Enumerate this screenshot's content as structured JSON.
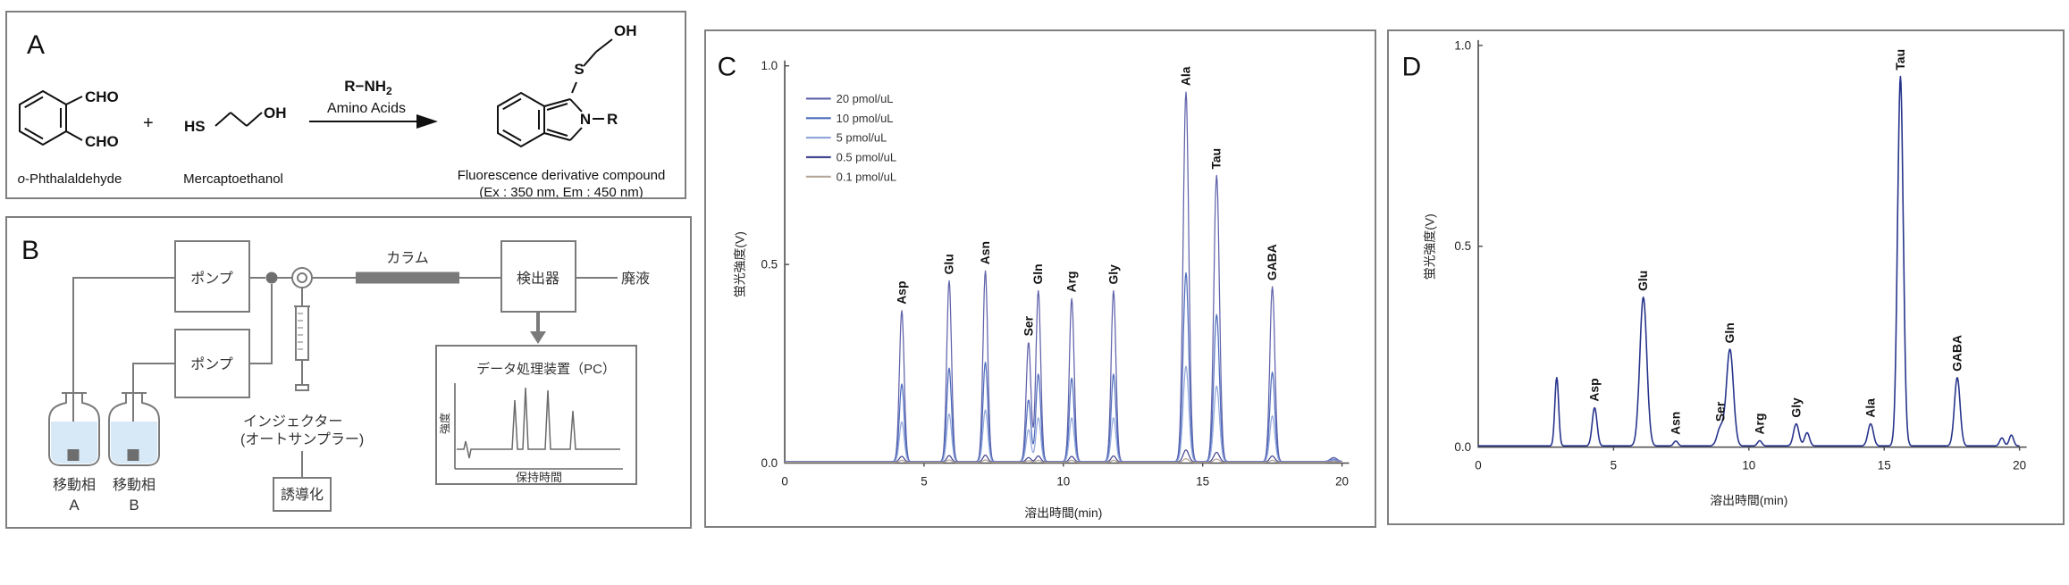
{
  "colors": {
    "panel_border": "#7f7f7f",
    "diagram_line": "#7a7a7a",
    "diagram_text": "#333333",
    "chem_ink": "#111111",
    "bottle_liquid": "#d7e9f7",
    "axis": "#4a4a4a"
  },
  "panelA": {
    "label": "A",
    "cho_top": "CHO",
    "cho_bottom": "CHO",
    "plus": "+",
    "hs": "HS",
    "oh": "OH",
    "reactant1_prefix": "o",
    "reactant1_rest": "-Phthalaldehyde",
    "reactant2": "Mercaptoethanol",
    "arrow_reagent": "R−NH",
    "arrow_reagent_sub": "2",
    "arrow_caption": "Amino Acids",
    "product_oh": "OH",
    "product_s": "S",
    "product_n": "N",
    "product_r": "R",
    "product_name": "Fluorescence derivative compound",
    "product_condition": "(Ex : 350 nm, Em : 450 nm)"
  },
  "panelB": {
    "label": "B",
    "pump_top": "ポンプ",
    "pump_bottom": "ポンプ",
    "column": "カラム",
    "detector": "検出器",
    "waste": "廃液",
    "pc_title": "データ処理装置（PC）",
    "pc_ylabel": "強度",
    "pc_xlabel": "保持時間",
    "injector_line1": "インジェクター",
    "injector_line2": "(オートサンプラー)",
    "derivatization": "誘導化",
    "mobile_a_label": "移動相",
    "mobile_a_sub": "A",
    "mobile_b_label": "移動相",
    "mobile_b_sub": "B"
  },
  "chart_data": [
    {
      "id": "C",
      "panel_label": "C",
      "type": "line",
      "title": "",
      "xlabel": "溶出時間(min)",
      "ylabel": "蛍光強度(V)",
      "xlim": [
        0,
        20
      ],
      "ylim": [
        0,
        1.0
      ],
      "xticks": [
        {
          "value": 0,
          "label": "0"
        },
        {
          "value": 5,
          "label": "5"
        },
        {
          "value": 10,
          "label": "10"
        },
        {
          "value": 15,
          "label": "15"
        },
        {
          "value": 20,
          "label": "20"
        }
      ],
      "yticks": [
        {
          "value": 0,
          "label": "0.0"
        },
        {
          "value": 0.5,
          "label": "0.5"
        },
        {
          "value": 1.0,
          "label": "1.0"
        }
      ],
      "legend_position": "upper-left",
      "grid": false,
      "peaks": [
        {
          "name": "Asp",
          "time": 4.2,
          "sigma": 0.085
        },
        {
          "name": "Glu",
          "time": 5.9,
          "sigma": 0.085
        },
        {
          "name": "Asn",
          "time": 7.2,
          "sigma": 0.085
        },
        {
          "name": "Ser",
          "time": 8.75,
          "sigma": 0.085
        },
        {
          "name": "Gln",
          "time": 9.1,
          "sigma": 0.085
        },
        {
          "name": "Arg",
          "time": 10.3,
          "sigma": 0.085
        },
        {
          "name": "Gly",
          "time": 11.8,
          "sigma": 0.085
        },
        {
          "name": "Ala",
          "time": 14.4,
          "sigma": 0.1
        },
        {
          "name": "Tau",
          "time": 15.5,
          "sigma": 0.1
        },
        {
          "name": "GABA",
          "time": 17.5,
          "sigma": 0.09
        },
        {
          "name": "",
          "time": 19.7,
          "sigma": 0.12
        }
      ],
      "series": [
        {
          "name": "20 pmol/uL",
          "color": "#5f61aa",
          "baseline": 0.004,
          "heights": [
            0.38,
            0.455,
            0.48,
            0.3,
            0.43,
            0.41,
            0.43,
            0.93,
            0.72,
            0.44,
            0.01
          ]
        },
        {
          "name": "10 pmol/uL",
          "color": "#4e6cbd",
          "baseline": 0.004,
          "heights": [
            0.195,
            0.235,
            0.25,
            0.155,
            0.22,
            0.21,
            0.22,
            0.475,
            0.37,
            0.225,
            0.006
          ]
        },
        {
          "name": "5 pmol/uL",
          "color": "#93a7db",
          "baseline": 0.004,
          "heights": [
            0.1,
            0.12,
            0.13,
            0.08,
            0.11,
            0.11,
            0.11,
            0.24,
            0.19,
            0.115,
            0.004
          ]
        },
        {
          "name": "0.5 pmol/uL",
          "color": "#44468e",
          "baseline": 0.003,
          "heights": [
            0.014,
            0.016,
            0.017,
            0.011,
            0.015,
            0.014,
            0.015,
            0.03,
            0.024,
            0.015,
            0.002
          ]
        },
        {
          "name": "0.1 pmol/uL",
          "color": "#b6a697",
          "baseline": 0.002,
          "heights": [
            0.005,
            0.006,
            0.006,
            0.004,
            0.005,
            0.005,
            0.005,
            0.009,
            0.008,
            0.005,
            0.002
          ]
        }
      ]
    },
    {
      "id": "D",
      "panel_label": "D",
      "type": "line",
      "title": "",
      "xlabel": "溶出時間(min)",
      "ylabel": "蛍光強度(V)",
      "xlim": [
        0,
        20
      ],
      "ylim": [
        0,
        1.0
      ],
      "xticks": [
        {
          "value": 0,
          "label": "0"
        },
        {
          "value": 5,
          "label": "5"
        },
        {
          "value": 10,
          "label": "10"
        },
        {
          "value": 15,
          "label": "15"
        },
        {
          "value": 20,
          "label": "20"
        }
      ],
      "yticks": [
        {
          "value": 0,
          "label": "0.0"
        },
        {
          "value": 0.5,
          "label": "0.5"
        },
        {
          "value": 1.0,
          "label": "1.0"
        }
      ],
      "grid": false,
      "peaks": [
        {
          "name": "",
          "time": 2.9,
          "sigma": 0.07
        },
        {
          "name": "Asp",
          "time": 4.3,
          "sigma": 0.09
        },
        {
          "name": "Glu",
          "time": 6.1,
          "sigma": 0.13
        },
        {
          "name": "Asn",
          "time": 7.3,
          "sigma": 0.08
        },
        {
          "name": "Ser",
          "time": 8.95,
          "sigma": 0.12
        },
        {
          "name": "Gln",
          "time": 9.3,
          "sigma": 0.13
        },
        {
          "name": "Arg",
          "time": 10.4,
          "sigma": 0.08
        },
        {
          "name": "Gly",
          "time": 11.75,
          "sigma": 0.1
        },
        {
          "name": "",
          "time": 12.15,
          "sigma": 0.09
        },
        {
          "name": "Ala",
          "time": 14.5,
          "sigma": 0.1
        },
        {
          "name": "Tau",
          "time": 15.6,
          "sigma": 0.105
        },
        {
          "name": "GABA",
          "time": 17.7,
          "sigma": 0.105
        },
        {
          "name": "",
          "time": 19.35,
          "sigma": 0.08
        },
        {
          "name": "",
          "time": 19.7,
          "sigma": 0.08
        }
      ],
      "series": [
        {
          "name": "",
          "color": "#27348b",
          "baseline": 0.003,
          "heights": [
            0.17,
            0.095,
            0.37,
            0.012,
            0.045,
            0.24,
            0.013,
            0.055,
            0.033,
            0.055,
            0.92,
            0.17,
            0.02,
            0.027
          ]
        }
      ]
    }
  ]
}
